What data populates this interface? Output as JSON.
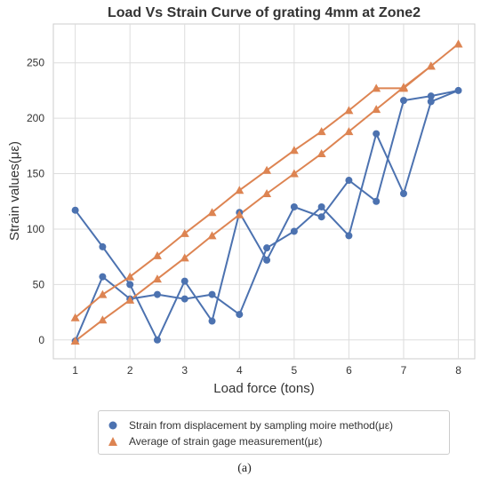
{
  "chart_data": {
    "type": "line",
    "title": "Load Vs Strain Curve of grating 4mm at Zone2",
    "xlabel": "Load force (tons)",
    "ylabel": "Strain values(με)",
    "xlim": [
      0.6,
      8.3
    ],
    "ylim": [
      -17,
      285
    ],
    "xticks": [
      1,
      2,
      3,
      4,
      5,
      6,
      7,
      8
    ],
    "yticks": [
      0,
      50,
      100,
      150,
      200,
      250
    ],
    "grid": true,
    "legend_position": "bottom",
    "series": [
      {
        "name": "Strain from displacement by sampling moire method(με)",
        "color": "#4c72b0",
        "marker": "circle",
        "points": [
          [
            1,
            117
          ],
          [
            1.5,
            84
          ],
          [
            2,
            50
          ],
          [
            2.5,
            0
          ],
          [
            3,
            53
          ],
          [
            3.5,
            17
          ],
          [
            4,
            115
          ],
          [
            4.5,
            72
          ],
          [
            5,
            120
          ],
          [
            5.5,
            111
          ],
          [
            6,
            144
          ],
          [
            6.5,
            125
          ],
          [
            7,
            216
          ],
          [
            7.5,
            220
          ],
          [
            8,
            225
          ],
          [
            7.5,
            215
          ],
          [
            7,
            132
          ],
          [
            6.5,
            186
          ],
          [
            6,
            94
          ],
          [
            5.5,
            120
          ],
          [
            5,
            98
          ],
          [
            4.5,
            83
          ],
          [
            4,
            23
          ],
          [
            3.5,
            41
          ],
          [
            3,
            37
          ],
          [
            2.5,
            41
          ],
          [
            2,
            37
          ],
          [
            1.5,
            57
          ],
          [
            1,
            -1
          ]
        ]
      },
      {
        "name": "Average of strain gage measurement(με)",
        "color": "#dd8452",
        "marker": "triangle",
        "points": [
          [
            1,
            20
          ],
          [
            1.5,
            41
          ],
          [
            2,
            57
          ],
          [
            2.5,
            76
          ],
          [
            3,
            96
          ],
          [
            3.5,
            115
          ],
          [
            4,
            135
          ],
          [
            4.5,
            153
          ],
          [
            5,
            171
          ],
          [
            5.5,
            188
          ],
          [
            6,
            207
          ],
          [
            6.5,
            227
          ],
          [
            7,
            227
          ],
          [
            7.5,
            247
          ],
          [
            8,
            267
          ],
          [
            7.5,
            247
          ],
          [
            7,
            228
          ],
          [
            6.5,
            208
          ],
          [
            6,
            188
          ],
          [
            5.5,
            168
          ],
          [
            5,
            150
          ],
          [
            4.5,
            132
          ],
          [
            4,
            113
          ],
          [
            3.5,
            94
          ],
          [
            3,
            74
          ],
          [
            2.5,
            55
          ],
          [
            2,
            36
          ],
          [
            1.5,
            18
          ],
          [
            1,
            -1
          ]
        ]
      }
    ]
  },
  "caption": "(a)"
}
